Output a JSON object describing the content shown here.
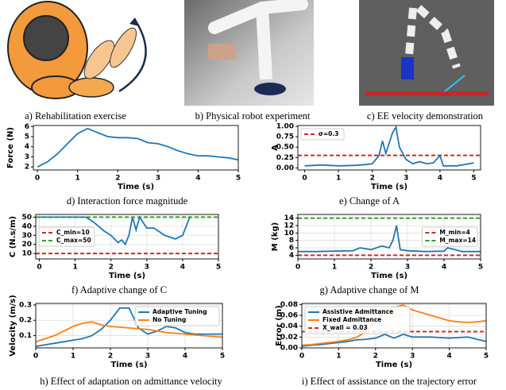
{
  "images": [
    {
      "caption": "a) Rehabilitation exercise"
    },
    {
      "caption": "b) Physical robot experiment"
    },
    {
      "caption": "c) EE velocity demonstration"
    }
  ],
  "chart_data": [
    {
      "type": "line",
      "caption": "d) Interaction force magnitude",
      "xlabel": "Time (s)",
      "ylabel": "Force (N)",
      "x": [
        0,
        0.25,
        0.5,
        0.75,
        1.0,
        1.25,
        1.5,
        1.75,
        2.0,
        2.25,
        2.5,
        2.75,
        3.0,
        3.25,
        3.5,
        3.75,
        4.0,
        4.25,
        4.5,
        4.75,
        5.0
      ],
      "xlim": [
        -0.1,
        5.0
      ],
      "xticks": [
        0,
        1,
        2,
        3,
        4,
        5
      ],
      "ylim": [
        1.7,
        6.1
      ],
      "yticks": [
        2,
        3,
        4,
        5,
        6
      ],
      "grid": false,
      "series": [
        {
          "color": "#1f77b4",
          "values": [
            2.0,
            2.5,
            3.3,
            4.3,
            5.3,
            5.8,
            5.4,
            5.0,
            4.9,
            4.9,
            4.8,
            4.4,
            4.3,
            4.0,
            3.6,
            3.3,
            3.1,
            3.1,
            3.0,
            2.9,
            2.7
          ]
        }
      ]
    },
    {
      "type": "line",
      "caption": "e) Change of A",
      "xlabel": "Time (s)",
      "ylabel": "A",
      "x": [
        0,
        0.5,
        1.0,
        1.5,
        1.8,
        2.0,
        2.2,
        2.3,
        2.4,
        2.5,
        2.6,
        2.7,
        2.8,
        3.0,
        3.2,
        3.4,
        3.6,
        3.8,
        4.0,
        4.1,
        4.5,
        5.0
      ],
      "xlim": [
        -0.2,
        5.2
      ],
      "xticks": [
        0,
        1,
        2,
        3,
        4,
        5
      ],
      "ylim": [
        -0.05,
        1.02
      ],
      "yticks": [
        {
          "value": 0,
          "label": "0.00"
        },
        {
          "value": 0.25,
          "label": "0.25"
        },
        {
          "value": 0.5,
          "label": "0.50"
        },
        {
          "value": 0.75,
          "label": "0.75"
        },
        {
          "value": 1.0,
          "label": "1.00"
        }
      ],
      "grid": false,
      "legend": "upper left",
      "series": [
        {
          "color": "#1f77b4",
          "values": [
            0.05,
            0.07,
            0.05,
            0.06,
            0.08,
            0.1,
            0.3,
            0.65,
            0.35,
            0.6,
            0.85,
            0.98,
            0.5,
            0.2,
            0.1,
            0.15,
            0.1,
            0.12,
            0.3,
            0.05,
            0.05,
            0.12
          ]
        }
      ],
      "hlines": [
        {
          "name": "σ=0.3",
          "value": 0.3,
          "color": "#d62728"
        }
      ]
    },
    {
      "type": "line",
      "caption": "f) Adaptive change of C",
      "xlabel": "Time (s)",
      "ylabel": "C (N.s/m)",
      "x": [
        0,
        1.3,
        1.5,
        1.8,
        2.0,
        2.2,
        2.3,
        2.4,
        2.5,
        2.6,
        2.7,
        2.8,
        3.0,
        3.2,
        3.5,
        3.8,
        4.0,
        4.2
      ],
      "xlim": [
        -0.1,
        5.0
      ],
      "xticks": [
        0,
        1,
        2,
        3,
        4,
        5
      ],
      "ylim": [
        4,
        53
      ],
      "yticks": [
        10,
        20,
        30,
        40,
        50
      ],
      "grid": true,
      "legend": "center left",
      "series": [
        {
          "color": "#1f77b4",
          "values": [
            50,
            50,
            45,
            35,
            30,
            22,
            25,
            20,
            30,
            50,
            36,
            50,
            38,
            38,
            30,
            26,
            30,
            50
          ]
        }
      ],
      "hlines": [
        {
          "name": "C_min=10",
          "value": 10,
          "color": "#d62728"
        },
        {
          "name": "C_max=50",
          "value": 50,
          "color": "#2ca02c"
        }
      ]
    },
    {
      "type": "line",
      "caption": "g) Adaptive change of M",
      "xlabel": "Time (s)",
      "ylabel": "M (kg)",
      "x": [
        0,
        0.5,
        1.0,
        1.5,
        1.7,
        2.0,
        2.3,
        2.5,
        2.6,
        2.7,
        2.8,
        3.0,
        3.5,
        4.0,
        4.1,
        4.5,
        5.0
      ],
      "xlim": [
        0,
        5.0
      ],
      "xticks": [
        0,
        1,
        2,
        3,
        4,
        5
      ],
      "ylim": [
        3,
        15
      ],
      "yticks": [
        4,
        6,
        8,
        10,
        12,
        14
      ],
      "grid": true,
      "legend": "center right",
      "series": [
        {
          "color": "#1f77b4",
          "values": [
            5.0,
            5.0,
            5.1,
            5.2,
            6.0,
            5.5,
            6.5,
            6.0,
            8.0,
            12.0,
            5.5,
            5.2,
            5.0,
            5.1,
            6.0,
            5.0,
            5.0
          ]
        }
      ],
      "hlines": [
        {
          "name": "M_min=4",
          "value": 4,
          "color": "#d62728"
        },
        {
          "name": "M_max=14",
          "value": 14,
          "color": "#2ca02c"
        }
      ]
    },
    {
      "type": "line",
      "caption": "h) Effect of adaptation on admittance velocity",
      "xlabel": "Time (s)",
      "ylabel": "Velocity (m/s)",
      "x": [
        0,
        0.25,
        0.5,
        0.75,
        1.0,
        1.25,
        1.5,
        1.75,
        2.0,
        2.25,
        2.5,
        2.75,
        3.0,
        3.25,
        3.5,
        3.75,
        4.0,
        4.25,
        4.5,
        4.75,
        5.0
      ],
      "xlim": [
        0,
        5.0
      ],
      "xticks": [
        0,
        1,
        2,
        3,
        4,
        5
      ],
      "ylim": [
        0.02,
        0.31
      ],
      "yticks": [
        0.1,
        0.2,
        0.3
      ],
      "grid": true,
      "legend": "upper right",
      "series": [
        {
          "name": "Adaptive Tuning",
          "color": "#1f77b4",
          "values": [
            0.03,
            0.04,
            0.05,
            0.06,
            0.07,
            0.08,
            0.1,
            0.14,
            0.2,
            0.28,
            0.28,
            0.15,
            0.11,
            0.13,
            0.16,
            0.15,
            0.12,
            0.11,
            0.11,
            0.11,
            0.11
          ]
        },
        {
          "name": "No Tuning",
          "color": "#ff7f0e",
          "values": [
            0.06,
            0.08,
            0.1,
            0.13,
            0.16,
            0.18,
            0.19,
            0.17,
            0.16,
            0.155,
            0.15,
            0.145,
            0.14,
            0.13,
            0.12,
            0.115,
            0.11,
            0.105,
            0.1,
            0.095,
            0.09
          ]
        }
      ]
    },
    {
      "type": "line",
      "caption": "i) Effect of assistance on the trajectory error",
      "xlabel": "Time (s)",
      "ylabel": "Error (m)",
      "x": [
        0,
        0.25,
        0.5,
        0.75,
        1.0,
        1.25,
        1.5,
        1.75,
        2.0,
        2.25,
        2.5,
        2.75,
        3.0,
        3.25,
        3.5,
        3.75,
        4.0,
        4.25,
        4.5,
        4.75,
        5.0
      ],
      "xlim": [
        0,
        5.0
      ],
      "xticks": [
        0,
        1,
        2,
        3,
        4,
        5
      ],
      "ylim": [
        0,
        0.082
      ],
      "yticks": [
        {
          "value": 0,
          "label": "0.00"
        },
        {
          "value": 0.02,
          "label": "0.02"
        },
        {
          "value": 0.04,
          "label": "0.04"
        },
        {
          "value": 0.06,
          "label": "0.06"
        },
        {
          "value": 0.08,
          "label": "0.08"
        }
      ],
      "grid": true,
      "legend": "upper left",
      "series": [
        {
          "name": "Assistive Admittance",
          "color": "#1f77b4",
          "values": [
            0.003,
            0.005,
            0.006,
            0.008,
            0.01,
            0.012,
            0.015,
            0.016,
            0.018,
            0.025,
            0.018,
            0.025,
            0.02,
            0.02,
            0.02,
            0.019,
            0.018,
            0.019,
            0.02,
            0.016,
            0.012
          ]
        },
        {
          "name": "Fixed Admittance",
          "color": "#ff7f0e",
          "values": [
            0.005,
            0.006,
            0.008,
            0.01,
            0.012,
            0.015,
            0.02,
            0.03,
            0.05,
            0.065,
            0.075,
            0.079,
            0.07,
            0.065,
            0.06,
            0.055,
            0.05,
            0.048,
            0.047,
            0.048,
            0.05
          ]
        }
      ],
      "hlines": [
        {
          "name": "X_wall = 0.03",
          "value": 0.03,
          "color": "#d62728"
        }
      ]
    }
  ]
}
